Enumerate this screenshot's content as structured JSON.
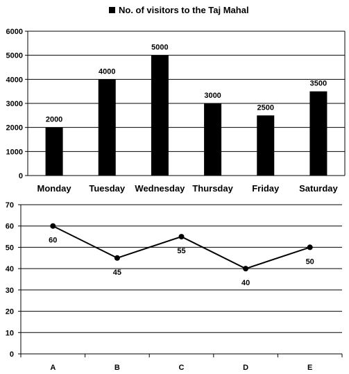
{
  "chart_data": [
    {
      "type": "bar",
      "legend": {
        "label": "No. of visitors to the Taj Mahal",
        "placement": "top-center",
        "color": "#000000"
      },
      "categories": [
        "Monday",
        "Tuesday",
        "Wednesday",
        "Thursday",
        "Friday",
        "Saturday"
      ],
      "series": [
        {
          "name": "No. of visitors to the Taj Mahal",
          "values": [
            2000,
            4000,
            5000,
            3000,
            2500,
            3500
          ]
        }
      ],
      "data_labels": [
        "2000",
        "4000",
        "5000",
        "3000",
        "2500",
        "3500"
      ],
      "ylim": [
        0,
        6000
      ],
      "yticks": [
        "0",
        "1000",
        "2000",
        "3000",
        "4000",
        "5000",
        "6000"
      ],
      "grid": true,
      "bar_color": "#000000"
    },
    {
      "type": "line",
      "categories": [
        "A",
        "B",
        "C",
        "D",
        "E"
      ],
      "series": [
        {
          "values": [
            60,
            45,
            55,
            40,
            50
          ]
        }
      ],
      "data_labels": [
        "60",
        "45",
        "55",
        "40",
        "50"
      ],
      "ylim": [
        0,
        70
      ],
      "yticks": [
        "0",
        "10",
        "20",
        "30",
        "40",
        "50",
        "60",
        "70"
      ],
      "grid": true,
      "line_color": "#000000"
    }
  ]
}
